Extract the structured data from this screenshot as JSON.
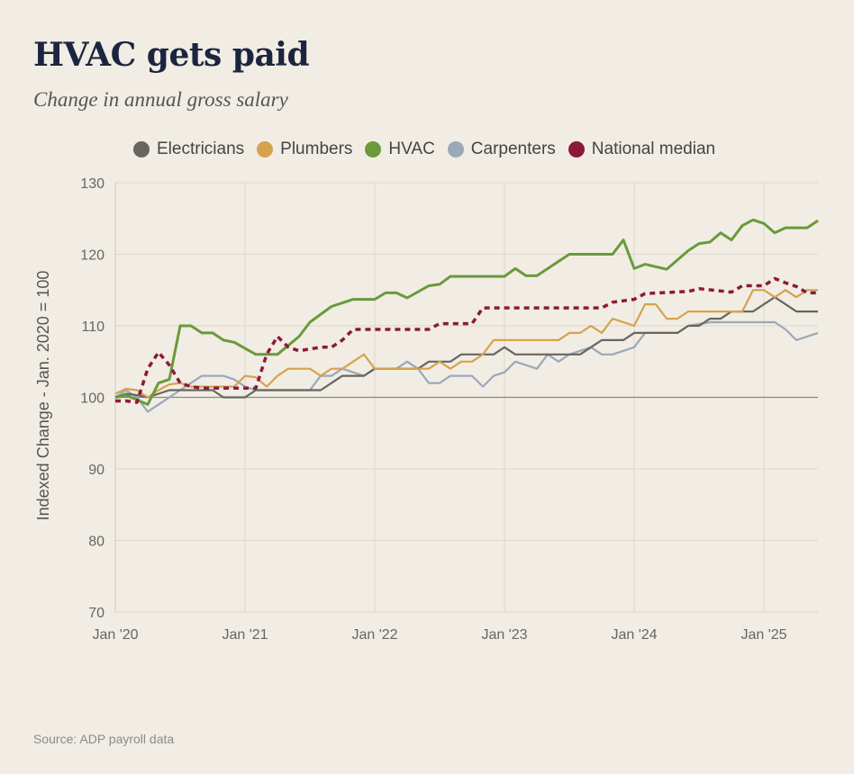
{
  "title": "HVAC gets paid",
  "subtitle": "Change in annual gross salary",
  "source": "Source: ADP payroll data",
  "chart_data": {
    "type": "line",
    "title": "HVAC gets paid",
    "subtitle": "Change in annual gross salary",
    "ylabel": "Indexed Change - Jan. 2020 = 100",
    "xlabel": "",
    "ylim": [
      70,
      130
    ],
    "yticks": [
      70,
      80,
      90,
      100,
      110,
      120,
      130
    ],
    "xticks": [
      {
        "date": "2020-01",
        "label": "Jan '20"
      },
      {
        "date": "2021-01",
        "label": "Jan '21"
      },
      {
        "date": "2022-01",
        "label": "Jan '22"
      },
      {
        "date": "2023-01",
        "label": "Jan '23"
      },
      {
        "date": "2024-01",
        "label": "Jan '24"
      },
      {
        "date": "2025-01",
        "label": "Jan '25"
      }
    ],
    "xlim": [
      "2020-01",
      "2025-06"
    ],
    "grid": true,
    "reference_line": 100,
    "legend_position": "top",
    "series": [
      {
        "name": "Electricians",
        "color": "#66665f",
        "style": "solid",
        "points": [
          [
            "2020-01",
            100
          ],
          [
            "2020-02",
            100.5
          ],
          [
            "2020-03",
            100.3
          ],
          [
            "2020-04",
            100
          ],
          [
            "2020-05",
            100.5
          ],
          [
            "2020-06",
            101
          ],
          [
            "2020-10",
            101
          ],
          [
            "2020-11",
            100
          ],
          [
            "2021-01",
            100
          ],
          [
            "2021-02",
            101
          ],
          [
            "2021-08",
            101
          ],
          [
            "2021-09",
            102
          ],
          [
            "2021-10",
            103
          ],
          [
            "2021-12",
            103
          ],
          [
            "2022-01",
            104
          ],
          [
            "2022-05",
            104
          ],
          [
            "2022-06",
            105
          ],
          [
            "2022-08",
            105
          ],
          [
            "2022-09",
            106
          ],
          [
            "2022-12",
            106
          ],
          [
            "2023-01",
            107
          ],
          [
            "2023-02",
            106
          ],
          [
            "2023-08",
            106
          ],
          [
            "2023-09",
            107
          ],
          [
            "2023-10",
            108
          ],
          [
            "2023-12",
            108
          ],
          [
            "2024-01",
            109
          ],
          [
            "2024-05",
            109
          ],
          [
            "2024-06",
            110
          ],
          [
            "2024-07",
            110
          ],
          [
            "2024-08",
            111
          ],
          [
            "2024-09",
            111
          ],
          [
            "2024-10",
            112
          ],
          [
            "2024-12",
            112
          ],
          [
            "2025-01",
            113
          ],
          [
            "2025-02",
            114
          ],
          [
            "2025-03",
            113
          ],
          [
            "2025-04",
            112
          ],
          [
            "2025-06",
            112
          ]
        ]
      },
      {
        "name": "Plumbers",
        "color": "#d6a24e",
        "style": "solid",
        "points": [
          [
            "2020-01",
            100.5
          ],
          [
            "2020-02",
            101.2
          ],
          [
            "2020-03",
            101
          ],
          [
            "2020-04",
            100
          ],
          [
            "2020-05",
            101
          ],
          [
            "2020-06",
            101.8
          ],
          [
            "2020-07",
            102
          ],
          [
            "2020-08",
            101.5
          ],
          [
            "2020-12",
            101.5
          ],
          [
            "2021-01",
            103
          ],
          [
            "2021-02",
            102.8
          ],
          [
            "2021-03",
            101.5
          ],
          [
            "2021-04",
            103
          ],
          [
            "2021-05",
            104
          ],
          [
            "2021-07",
            104
          ],
          [
            "2021-08",
            103
          ],
          [
            "2021-09",
            104
          ],
          [
            "2021-10",
            104
          ],
          [
            "2021-11",
            105
          ],
          [
            "2021-12",
            106
          ],
          [
            "2022-01",
            104
          ],
          [
            "2022-06",
            104
          ],
          [
            "2022-07",
            105
          ],
          [
            "2022-08",
            104
          ],
          [
            "2022-09",
            105
          ],
          [
            "2022-10",
            105
          ],
          [
            "2022-11",
            106
          ],
          [
            "2022-12",
            108
          ],
          [
            "2023-06",
            108
          ],
          [
            "2023-07",
            109
          ],
          [
            "2023-08",
            109
          ],
          [
            "2023-09",
            110
          ],
          [
            "2023-10",
            109
          ],
          [
            "2023-11",
            111
          ],
          [
            "2023-12",
            110.5
          ],
          [
            "2024-01",
            110
          ],
          [
            "2024-02",
            113
          ],
          [
            "2024-03",
            113
          ],
          [
            "2024-04",
            111
          ],
          [
            "2024-05",
            111
          ],
          [
            "2024-06",
            112
          ],
          [
            "2024-11",
            112
          ],
          [
            "2024-12",
            115
          ],
          [
            "2025-01",
            115
          ],
          [
            "2025-02",
            114
          ],
          [
            "2025-03",
            115
          ],
          [
            "2025-04",
            114
          ],
          [
            "2025-05",
            115
          ],
          [
            "2025-06",
            115
          ]
        ]
      },
      {
        "name": "HVAC",
        "color": "#6a9a3a",
        "style": "solid",
        "points": [
          [
            "2020-01",
            100
          ],
          [
            "2020-02",
            100.3
          ],
          [
            "2020-04",
            99
          ],
          [
            "2020-05",
            102
          ],
          [
            "2020-06",
            102.5
          ],
          [
            "2020-07",
            110
          ],
          [
            "2020-08",
            110
          ],
          [
            "2020-09",
            109
          ],
          [
            "2020-10",
            109
          ],
          [
            "2020-11",
            108
          ],
          [
            "2020-12",
            107.7
          ],
          [
            "2021-02",
            106
          ],
          [
            "2021-04",
            106
          ],
          [
            "2021-06",
            108.5
          ],
          [
            "2021-07",
            110.5
          ],
          [
            "2021-09",
            112.7
          ],
          [
            "2021-11",
            113.7
          ],
          [
            "2022-01",
            113.7
          ],
          [
            "2022-02",
            114.6
          ],
          [
            "2022-03",
            114.6
          ],
          [
            "2022-04",
            113.9
          ],
          [
            "2022-06",
            115.6
          ],
          [
            "2022-07",
            115.8
          ],
          [
            "2022-08",
            116.9
          ],
          [
            "2023-01",
            116.9
          ],
          [
            "2023-02",
            118
          ],
          [
            "2023-03",
            117
          ],
          [
            "2023-04",
            117
          ],
          [
            "2023-07",
            120
          ],
          [
            "2023-11",
            120
          ],
          [
            "2023-12",
            122
          ],
          [
            "2024-01",
            118
          ],
          [
            "2024-02",
            118.6
          ],
          [
            "2024-04",
            117.9
          ],
          [
            "2024-06",
            120.5
          ],
          [
            "2024-07",
            121.5
          ],
          [
            "2024-08",
            121.7
          ],
          [
            "2024-09",
            123
          ],
          [
            "2024-10",
            122
          ],
          [
            "2024-11",
            124
          ],
          [
            "2024-12",
            124.8
          ],
          [
            "2025-01",
            124.3
          ],
          [
            "2025-02",
            123
          ],
          [
            "2025-03",
            123.7
          ],
          [
            "2025-05",
            123.7
          ],
          [
            "2025-06",
            124.7
          ]
        ]
      },
      {
        "name": "Carpenters",
        "color": "#9aa8b8",
        "style": "solid",
        "points": [
          [
            "2020-01",
            100
          ],
          [
            "2020-02",
            101
          ],
          [
            "2020-03",
            100
          ],
          [
            "2020-04",
            98
          ],
          [
            "2020-05",
            99
          ],
          [
            "2020-06",
            100
          ],
          [
            "2020-07",
            101
          ],
          [
            "2020-08",
            102
          ],
          [
            "2020-09",
            103
          ],
          [
            "2020-11",
            103
          ],
          [
            "2020-12",
            102.5
          ],
          [
            "2021-01",
            101.5
          ],
          [
            "2021-02",
            101
          ],
          [
            "2021-07",
            101
          ],
          [
            "2021-08",
            103
          ],
          [
            "2021-09",
            103
          ],
          [
            "2021-10",
            104
          ],
          [
            "2021-11",
            103.5
          ],
          [
            "2021-12",
            103
          ],
          [
            "2022-01",
            104
          ],
          [
            "2022-03",
            104
          ],
          [
            "2022-04",
            105
          ],
          [
            "2022-05",
            104
          ],
          [
            "2022-06",
            102
          ],
          [
            "2022-07",
            102
          ],
          [
            "2022-08",
            103
          ],
          [
            "2022-10",
            103
          ],
          [
            "2022-11",
            101.5
          ],
          [
            "2022-12",
            103
          ],
          [
            "2023-01",
            103.5
          ],
          [
            "2023-02",
            105
          ],
          [
            "2023-03",
            104.5
          ],
          [
            "2023-04",
            104
          ],
          [
            "2023-05",
            106
          ],
          [
            "2023-06",
            105
          ],
          [
            "2023-07",
            106
          ],
          [
            "2023-08",
            106.5
          ],
          [
            "2023-09",
            107
          ],
          [
            "2023-10",
            106
          ],
          [
            "2023-11",
            106
          ],
          [
            "2023-12",
            106.5
          ],
          [
            "2024-01",
            107
          ],
          [
            "2024-02",
            109
          ],
          [
            "2024-05",
            109
          ],
          [
            "2024-06",
            110
          ],
          [
            "2024-08",
            110.5
          ],
          [
            "2025-02",
            110.5
          ],
          [
            "2025-03",
            109.5
          ],
          [
            "2025-04",
            108
          ],
          [
            "2025-05",
            108.5
          ],
          [
            "2025-06",
            109
          ]
        ]
      },
      {
        "name": "National median",
        "color": "#8b1a3a",
        "style": "dotted",
        "points": [
          [
            "2020-01",
            99.5
          ],
          [
            "2020-02",
            99.5
          ],
          [
            "2020-03",
            99.3
          ],
          [
            "2020-04",
            104
          ],
          [
            "2020-05",
            106.3
          ],
          [
            "2020-06",
            104.5
          ],
          [
            "2020-07",
            102
          ],
          [
            "2020-08",
            101.5
          ],
          [
            "2020-09",
            101.3
          ],
          [
            "2021-02",
            101.3
          ],
          [
            "2021-03",
            106
          ],
          [
            "2021-04",
            108.5
          ],
          [
            "2021-05",
            107
          ],
          [
            "2021-06",
            106.5
          ],
          [
            "2021-08",
            107
          ],
          [
            "2021-09",
            107
          ],
          [
            "2021-10",
            108
          ],
          [
            "2021-11",
            109.5
          ],
          [
            "2022-06",
            109.5
          ],
          [
            "2022-07",
            110.3
          ],
          [
            "2022-10",
            110.3
          ],
          [
            "2022-11",
            112.5
          ],
          [
            "2023-10",
            112.5
          ],
          [
            "2023-11",
            113.3
          ],
          [
            "2024-01",
            113.7
          ],
          [
            "2024-02",
            114.5
          ],
          [
            "2024-06",
            114.8
          ],
          [
            "2024-07",
            115.2
          ],
          [
            "2024-10",
            114.7
          ],
          [
            "2024-11",
            115.6
          ],
          [
            "2025-01",
            115.6
          ],
          [
            "2025-02",
            116.6
          ],
          [
            "2025-03",
            116
          ],
          [
            "2025-04",
            115.5
          ],
          [
            "2025-05",
            114.6
          ],
          [
            "2025-06",
            114.6
          ]
        ]
      }
    ]
  }
}
